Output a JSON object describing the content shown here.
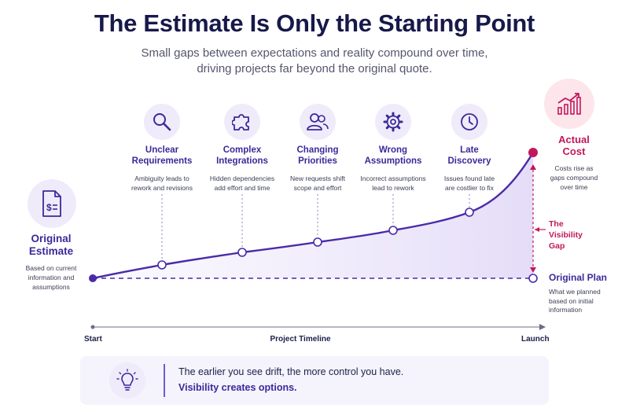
{
  "header": {
    "title": "The Estimate Is Only the Starting Point",
    "subtitle_line1": "Small gaps between expectations and reality compound over time,",
    "subtitle_line2": "driving projects far beyond the original quote."
  },
  "original_estimate": {
    "icon": "document-dollar-icon",
    "title_line1": "Original",
    "title_line2": "Estimate",
    "desc_line1": "Based on current",
    "desc_line2": "information and",
    "desc_line3": "assumptions"
  },
  "factors": [
    {
      "icon": "magnifier-icon",
      "title_line1": "Unclear",
      "title_line2": "Requirements",
      "desc_line1": "Ambiguity leads to",
      "desc_line2": "rework and revisions"
    },
    {
      "icon": "puzzle-icon",
      "title_line1": "Complex",
      "title_line2": "Integrations",
      "desc_line1": "Hidden dependencies",
      "desc_line2": "add effort and time"
    },
    {
      "icon": "people-icon",
      "title_line1": "Changing",
      "title_line2": "Priorities",
      "desc_line1": "New requests shift",
      "desc_line2": "scope and effort"
    },
    {
      "icon": "gear-icon",
      "title_line1": "Wrong",
      "title_line2": "Assumptions",
      "desc_line1": "Incorrect assumptions",
      "desc_line2": "lead to rework"
    },
    {
      "icon": "clock-icon",
      "title_line1": "Late",
      "title_line2": "Discovery",
      "desc_line1": "Issues found late",
      "desc_line2": "are costlier to fix"
    }
  ],
  "actual_cost": {
    "icon": "rising-chart-icon",
    "title_line1": "Actual",
    "title_line2": "Cost",
    "desc_line1": "Costs rise as",
    "desc_line2": "gaps compound",
    "desc_line3": "over time"
  },
  "visibility_gap": {
    "line1": "The",
    "line2": "Visibility",
    "line3": "Gap"
  },
  "original_plan": {
    "title": "Original Plan",
    "desc_line1": "What we planned",
    "desc_line2": "based on initial",
    "desc_line3": "information"
  },
  "timeline": {
    "start": "Start",
    "label": "Project Timeline",
    "end": "Launch"
  },
  "callout": {
    "icon": "lightbulb-icon",
    "line1": "The earlier you see drift, the more control you have.",
    "line2": "Visibility creates options."
  },
  "colors": {
    "primary": "#3a2a9a",
    "line": "#4b2aa8",
    "accent": "#c2185b",
    "icon_bg": "#efebfa",
    "actual_bg": "#fce6ec"
  }
}
